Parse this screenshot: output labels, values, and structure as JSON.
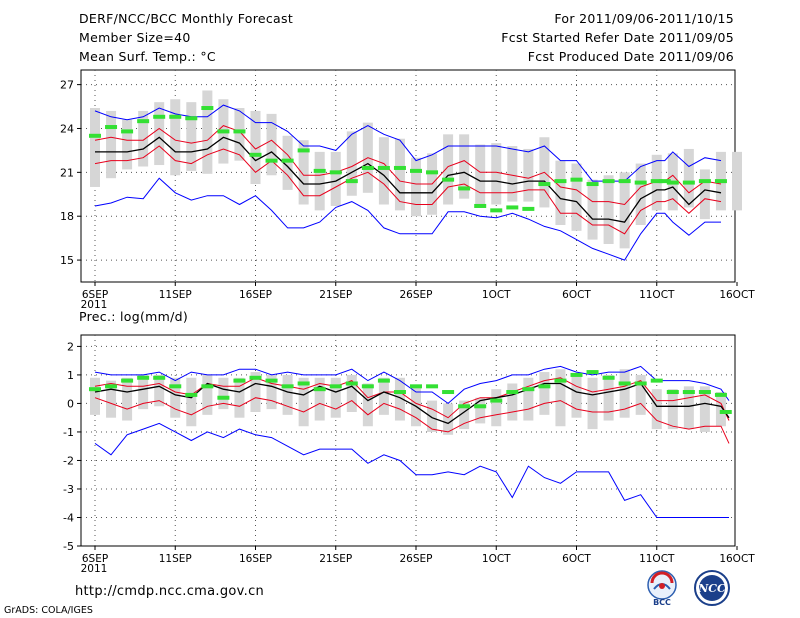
{
  "header": {
    "title": "DERF/NCC/BCC Monthly Forecast",
    "member_size": "Member Size=40",
    "variable": "Mean Surf. Temp.: °C",
    "period": "For 2011/09/06-2011/10/15",
    "fcst_started": "Fcst Started Refer Date 2011/09/05",
    "fcst_produced": "Fcst Produced Date 2011/09/06"
  },
  "footer": {
    "url": "http://cmdp.ncc.cma.gov.cn",
    "grads": "GrADS: COLA/IGES",
    "logo_bcc": "BCC",
    "logo_ncc": "NCC"
  },
  "chart_data": [
    {
      "type": "line",
      "title": "Mean Surf. Temp.: °C",
      "xlabel": "",
      "ylabel": "",
      "x": [
        1,
        2,
        3,
        4,
        5,
        6,
        7,
        8,
        9,
        10,
        11,
        12,
        13,
        14,
        15,
        16,
        17,
        18,
        19,
        20,
        21,
        22,
        23,
        24,
        25,
        26,
        27,
        28,
        29,
        30,
        31,
        32,
        33,
        34,
        35,
        36,
        36.5,
        37,
        38,
        39,
        40
      ],
      "xlim": [
        0.5,
        40.5
      ],
      "ylim": [
        13.5,
        28
      ],
      "yticks": [
        15,
        18,
        21,
        24,
        27
      ],
      "xticks": [
        {
          "x": 1,
          "label": "6SEP",
          "sub": "2011"
        },
        {
          "x": 6,
          "label": "11SEP"
        },
        {
          "x": 11,
          "label": "16SEP"
        },
        {
          "x": 16,
          "label": "21SEP"
        },
        {
          "x": 21,
          "label": "26SEP"
        },
        {
          "x": 26,
          "label": "1OCT"
        },
        {
          "x": 31,
          "label": "6OCT"
        },
        {
          "x": 36,
          "label": "11OCT"
        },
        {
          "x": 41,
          "label": "16OCT"
        }
      ],
      "series": [
        {
          "name": "max",
          "color": "#0000ff",
          "values": [
            25.2,
            24.8,
            24.6,
            24.8,
            25.4,
            25,
            24.8,
            24.8,
            25.6,
            25.2,
            24.4,
            24.4,
            23.8,
            22.8,
            22.8,
            22.5,
            23.6,
            24.2,
            23.6,
            23.2,
            21.8,
            22.2,
            22.8,
            22.8,
            22.8,
            22.8,
            22.6,
            22.4,
            22.8,
            21.8,
            21.8,
            20.4,
            20.4,
            20.4,
            21.4,
            21.8,
            21.8,
            22.4,
            21.4,
            22,
            21.8
          ]
        },
        {
          "name": "upper",
          "color": "#e8001c",
          "values": [
            23.2,
            23.4,
            23.2,
            23.2,
            24,
            23.2,
            23,
            23.2,
            24.2,
            23.8,
            22.6,
            23.2,
            22.2,
            20.8,
            20.8,
            21,
            21.4,
            22,
            21.6,
            20.4,
            20.2,
            20.2,
            21.4,
            21.8,
            21,
            21,
            20.8,
            20.6,
            21,
            20,
            19.8,
            19,
            19,
            18.8,
            20,
            20.4,
            20.4,
            20.8,
            19.6,
            20.4,
            20.2
          ]
        },
        {
          "name": "mean",
          "color": "#000000",
          "values": [
            22.4,
            22.4,
            22.4,
            22.6,
            23.4,
            22.4,
            22.4,
            22.6,
            23.4,
            23,
            21.8,
            22.4,
            21.4,
            20.2,
            20.2,
            20.4,
            21,
            21.6,
            20.8,
            19.6,
            19.6,
            19.6,
            20.8,
            21,
            20.4,
            20.4,
            20.2,
            20.4,
            20.4,
            19.2,
            19,
            17.8,
            17.8,
            17.6,
            19.2,
            19.8,
            19.8,
            20,
            18.8,
            19.8,
            19.6
          ]
        },
        {
          "name": "lower",
          "color": "#e8001c",
          "values": [
            21.6,
            21.8,
            21.8,
            22,
            22.8,
            21.8,
            21.6,
            22.2,
            22.6,
            22.2,
            21,
            21.8,
            20.8,
            19.4,
            19.4,
            20,
            20.6,
            21,
            20.2,
            19,
            18.8,
            18.8,
            20,
            20.2,
            19.6,
            19.6,
            19.6,
            19.8,
            19.8,
            18.2,
            18.2,
            17.4,
            17.4,
            16.8,
            18.4,
            19,
            19,
            19.2,
            18.2,
            19.2,
            19
          ]
        },
        {
          "name": "min",
          "color": "#0000ff",
          "values": [
            18.7,
            18.9,
            19.3,
            19.2,
            20.6,
            19.6,
            19.1,
            19.4,
            19.4,
            18.8,
            19.4,
            18.4,
            17.2,
            17.2,
            17.6,
            18.6,
            19,
            18.4,
            17.2,
            16.8,
            16.8,
            16.8,
            18.3,
            18.3,
            18,
            17.9,
            18.2,
            17.8,
            17.3,
            17,
            16.4,
            15.8,
            15.4,
            15,
            16.8,
            18.2,
            18.2,
            17.6,
            16.7,
            17.6,
            17.6
          ]
        }
      ],
      "boxes": {
        "lo": [
          20,
          20.6,
          21.2,
          21.4,
          21.5,
          20.8,
          21.1,
          20.9,
          21.6,
          21.8,
          20.2,
          20.8,
          19.8,
          18.8,
          18.4,
          18.7,
          19.4,
          19.6,
          18.8,
          18.4,
          18,
          18.1,
          18.8,
          19.2,
          18.8,
          18.8,
          19,
          19,
          18.6,
          17.4,
          17,
          16.4,
          16.1,
          15.8,
          17.4,
          18.4,
          18.4,
          18.6,
          17.8,
          18.4,
          18.4
        ],
        "hi": [
          25.4,
          25.2,
          24.6,
          25.2,
          25.8,
          26,
          25.8,
          26.6,
          26,
          25.4,
          25.2,
          25,
          23.5,
          23.2,
          22.4,
          22.4,
          23.8,
          24.4,
          23.4,
          23.3,
          22,
          22.3,
          23.6,
          23.6,
          22.9,
          23,
          22.8,
          22.6,
          23.4,
          21.8,
          21.6,
          20.5,
          20.8,
          21,
          21.6,
          22.2,
          22.3,
          22.6,
          21.2,
          22.4,
          22.4
        ]
      },
      "ens_mean": [
        23.5,
        24.1,
        23.8,
        24.5,
        24.8,
        24.8,
        24.7,
        25.4,
        23.8,
        23.8,
        22.2,
        21.8,
        21.8,
        22.5,
        21.1,
        21,
        20.4,
        21.3,
        21.3,
        21.3,
        21.1,
        21,
        20.5,
        19.9,
        18.7,
        18.4,
        18.6,
        18.5,
        20.2,
        20.4,
        20.5,
        20.2,
        20.4,
        20.4,
        20.3,
        20.4,
        20.4,
        20.3,
        20.3,
        20.4,
        20.4
      ]
    },
    {
      "type": "line",
      "title": "Prec.: log(mm/d)",
      "xlabel": "",
      "ylabel": "",
      "x": [
        1,
        2,
        3,
        4,
        5,
        6,
        7,
        8,
        9,
        10,
        11,
        12,
        13,
        14,
        15,
        16,
        17,
        18,
        19,
        20,
        21,
        22,
        23,
        24,
        25,
        26,
        27,
        28,
        29,
        30,
        31,
        32,
        33,
        34,
        35,
        36,
        37,
        38,
        39,
        40,
        40.5
      ],
      "xlim": [
        0.5,
        40.5
      ],
      "ylim": [
        -5,
        2.4
      ],
      "yticks": [
        -5,
        -4,
        -3,
        -2,
        -1,
        0,
        1,
        2
      ],
      "xticks": [
        {
          "x": 1,
          "label": "6SEP",
          "sub": "2011"
        },
        {
          "x": 6,
          "label": "11SEP"
        },
        {
          "x": 11,
          "label": "16SEP"
        },
        {
          "x": 16,
          "label": "21SEP"
        },
        {
          "x": 21,
          "label": "26SEP"
        },
        {
          "x": 26,
          "label": "1OCT"
        },
        {
          "x": 31,
          "label": "6OCT"
        },
        {
          "x": 36,
          "label": "11OCT"
        },
        {
          "x": 41,
          "label": "16OCT"
        }
      ],
      "series": [
        {
          "name": "max",
          "color": "#0000ff",
          "values": [
            1.1,
            1,
            1,
            1,
            1.1,
            0.8,
            1.1,
            1,
            1,
            1.2,
            1.2,
            1,
            1.1,
            1,
            1,
            1,
            1.2,
            0.8,
            1.1,
            0.8,
            0.4,
            0.4,
            0,
            0.5,
            0.7,
            0.8,
            1,
            1,
            1.2,
            1.3,
            1.1,
            1,
            1.1,
            1.1,
            1.3,
            0.8,
            0.8,
            0.8,
            0.7,
            0.5,
            0.1
          ]
        },
        {
          "name": "upper",
          "color": "#e8001c",
          "values": [
            0.6,
            0.7,
            0.6,
            0.6,
            0.7,
            0.4,
            0.3,
            0.7,
            0.6,
            0.6,
            0.9,
            0.7,
            0.6,
            0.5,
            0.7,
            0.6,
            0.8,
            0.2,
            0.4,
            0.4,
            0,
            -0.2,
            -0.5,
            0,
            0.2,
            0.2,
            0.4,
            0.6,
            0.8,
            0.9,
            0.6,
            0.4,
            0.5,
            0.6,
            0.8,
            0.1,
            0.1,
            0.2,
            0.3,
            0,
            -0.6
          ]
        },
        {
          "name": "mean",
          "color": "#000000",
          "values": [
            0.4,
            0.5,
            0.4,
            0.5,
            0.6,
            0.3,
            0.2,
            0.7,
            0.5,
            0.4,
            0.7,
            0.6,
            0.4,
            0.3,
            0.6,
            0.4,
            0.6,
            0.1,
            0.4,
            0.2,
            -0.1,
            -0.5,
            -0.7,
            -0.3,
            0.1,
            0.2,
            0.3,
            0.5,
            0.7,
            0.7,
            0.4,
            0.3,
            0.4,
            0.5,
            0.7,
            -0.1,
            -0.1,
            -0.1,
            0,
            -0.1,
            -0.5
          ]
        },
        {
          "name": "lower",
          "color": "#e8001c",
          "values": [
            0.2,
            0,
            -0.2,
            0,
            0.1,
            -0.2,
            -0.4,
            -0.1,
            0,
            -0.1,
            0.2,
            0.1,
            -0.1,
            -0.3,
            0,
            -0.2,
            0.1,
            -0.4,
            0,
            -0.2,
            -0.5,
            -0.9,
            -1,
            -0.7,
            -0.5,
            -0.4,
            -0.3,
            -0.2,
            0,
            0.1,
            -0.2,
            -0.3,
            -0.3,
            -0.2,
            0,
            -0.6,
            -0.8,
            -0.9,
            -0.8,
            -0.8,
            -1.4
          ]
        },
        {
          "name": "min",
          "color": "#0000ff",
          "values": [
            -1.4,
            -1.8,
            -1.1,
            -0.9,
            -0.7,
            -1,
            -1.3,
            -1,
            -1.2,
            -0.9,
            -1.1,
            -1.2,
            -1.5,
            -1.8,
            -1.6,
            -1.6,
            -1.6,
            -2.1,
            -1.8,
            -2,
            -2.5,
            -2.5,
            -2.4,
            -2.5,
            -2.2,
            -2.4,
            -3.3,
            -2.2,
            -2.6,
            -2.8,
            -2.4,
            -2.4,
            -2.4,
            -3.4,
            -3.2,
            -4,
            -4,
            -4,
            -4,
            -4,
            -4
          ]
        }
      ],
      "boxes": {
        "lo": [
          -0.4,
          -0.5,
          -0.6,
          -0.2,
          -0.1,
          -0.5,
          -0.8,
          -0.4,
          -0.2,
          -0.5,
          -0.3,
          -0.2,
          -0.4,
          -0.8,
          -0.6,
          -0.5,
          -0.3,
          -0.8,
          -0.4,
          -0.6,
          -0.8,
          -1,
          -1.1,
          -0.9,
          -0.7,
          -0.8,
          -0.6,
          -0.6,
          -0.4,
          -0.8,
          -0.5,
          -0.9,
          -0.6,
          -0.5,
          -0.4,
          -0.9,
          -0.9,
          -0.9,
          -1,
          -0.8
        ],
        "hi": [
          0.9,
          0.8,
          0.9,
          1,
          1,
          0.9,
          0.9,
          1,
          0.9,
          0.9,
          1.1,
          1,
          1,
          0.9,
          0.9,
          0.9,
          1,
          0.7,
          0.9,
          0.9,
          0.6,
          0.1,
          0,
          0.1,
          0.2,
          0.5,
          0.7,
          0.9,
          1.1,
          1.2,
          1,
          0.9,
          1,
          1.2,
          1,
          0.5,
          0.5,
          0.6,
          0.6,
          0.4
        ],
        "x": [
          1,
          2,
          3,
          4,
          5,
          6,
          7,
          8,
          9,
          10,
          11,
          12,
          13,
          14,
          15,
          16,
          17,
          18,
          19,
          20,
          21,
          22,
          23,
          24,
          25,
          26,
          27,
          28,
          29,
          30,
          31,
          32,
          33,
          34,
          35,
          36,
          37,
          38,
          39,
          40
        ]
      },
      "ens_mean": [
        0.5,
        0.6,
        0.8,
        0.9,
        0.9,
        0.6,
        0.3,
        0.6,
        0.2,
        0.8,
        0.9,
        0.8,
        0.6,
        0.7,
        0.5,
        0.6,
        0.7,
        0.6,
        0.8,
        0.4,
        0.6,
        0.6,
        0.4,
        -0.1,
        -0.1,
        0.1,
        0.4,
        0.5,
        0.6,
        0.8,
        1,
        1.1,
        0.9,
        0.7,
        0.7,
        0.8,
        0.4,
        0.4,
        0.4,
        0.3,
        -0.3
      ],
      "ens_x": [
        1,
        2,
        3,
        4,
        5,
        6,
        7,
        8,
        9,
        10,
        11,
        12,
        13,
        14,
        15,
        16,
        17,
        18,
        19,
        20,
        21,
        22,
        23,
        24,
        25,
        26,
        27,
        28,
        29,
        30,
        31,
        32,
        33,
        34,
        35,
        36,
        37,
        38,
        39,
        40,
        40.3
      ]
    }
  ]
}
